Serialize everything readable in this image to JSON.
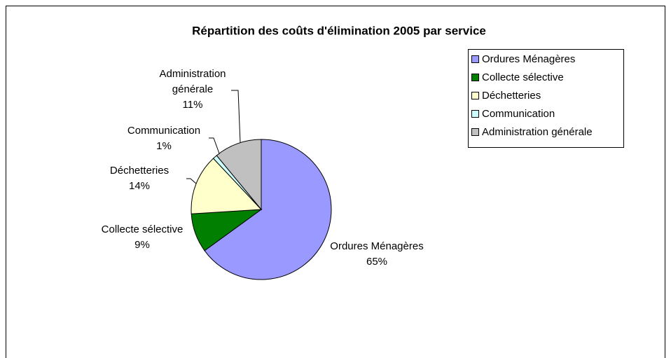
{
  "chart_data": {
    "type": "pie",
    "title": "Répartition des coûts d'élimination 2005 par service",
    "categories": [
      "Ordures Ménagères",
      "Collecte sélective",
      "Déchetteries",
      "Communication",
      "Administration générale"
    ],
    "values": [
      65,
      9,
      14,
      1,
      11
    ],
    "value_labels": [
      "65%",
      "9%",
      "14%",
      "1%",
      "11%"
    ],
    "colors": [
      "#9999ff",
      "#007f00",
      "#ffffcc",
      "#ccffff",
      "#c0c0c0"
    ],
    "legend": "right"
  }
}
